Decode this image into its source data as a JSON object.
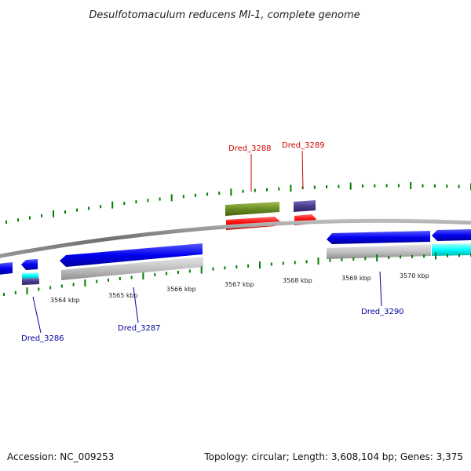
{
  "title": "Desulfotomaculum reducens MI-1, complete genome",
  "footer": {
    "accession": "Accession: NC_009253",
    "summary": "Topology: circular; Length: 3,608,104 bp; Genes: 3,375"
  },
  "scale": {
    "ticks": [
      "3564 kbp",
      "3565 kbp",
      "3566 kbp",
      "3567 kbp",
      "3568 kbp",
      "3569 kbp",
      "3570 kbp"
    ]
  },
  "genes": {
    "forward": [
      {
        "name": "Dred_3288",
        "color": "#cc0000"
      },
      {
        "name": "Dred_3289",
        "color": "#cc0000"
      }
    ],
    "reverse": [
      {
        "name": "Dred_3286",
        "color": "#000099"
      },
      {
        "name": "Dred_3287",
        "color": "#000099"
      },
      {
        "name": "Dred_3290",
        "color": "#000099"
      }
    ]
  },
  "colors": {
    "backbone": "#808080",
    "forward_cds": "#ff0000",
    "reverse_cds": "#0000ee",
    "reverse_gene": "#bdbdbd",
    "olive_feature": "#6b8e23",
    "slate_feature": "#483d8b",
    "cyan_feature": "#00ffff",
    "tick": "#008000"
  }
}
